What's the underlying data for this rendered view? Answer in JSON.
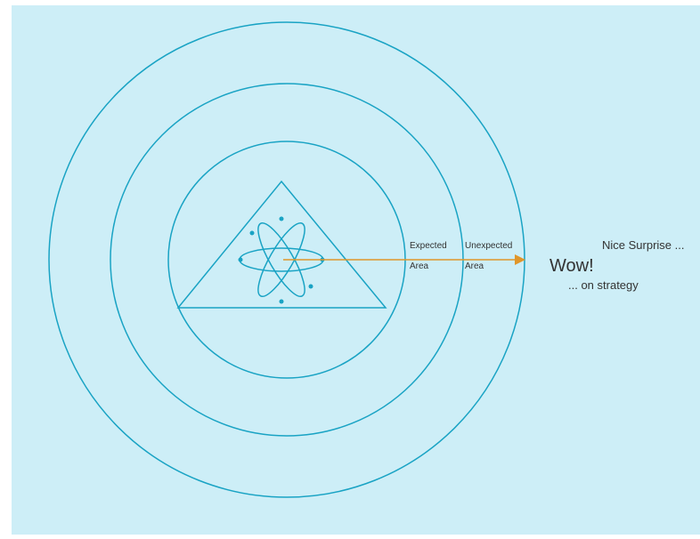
{
  "labels": {
    "expected": [
      "Expected",
      "Area"
    ],
    "unexpected": [
      "Unexpected",
      "Area"
    ],
    "nice": "Nice Surprise ...",
    "wow": "Wow!",
    "strategy": "... on strategy"
  }
}
